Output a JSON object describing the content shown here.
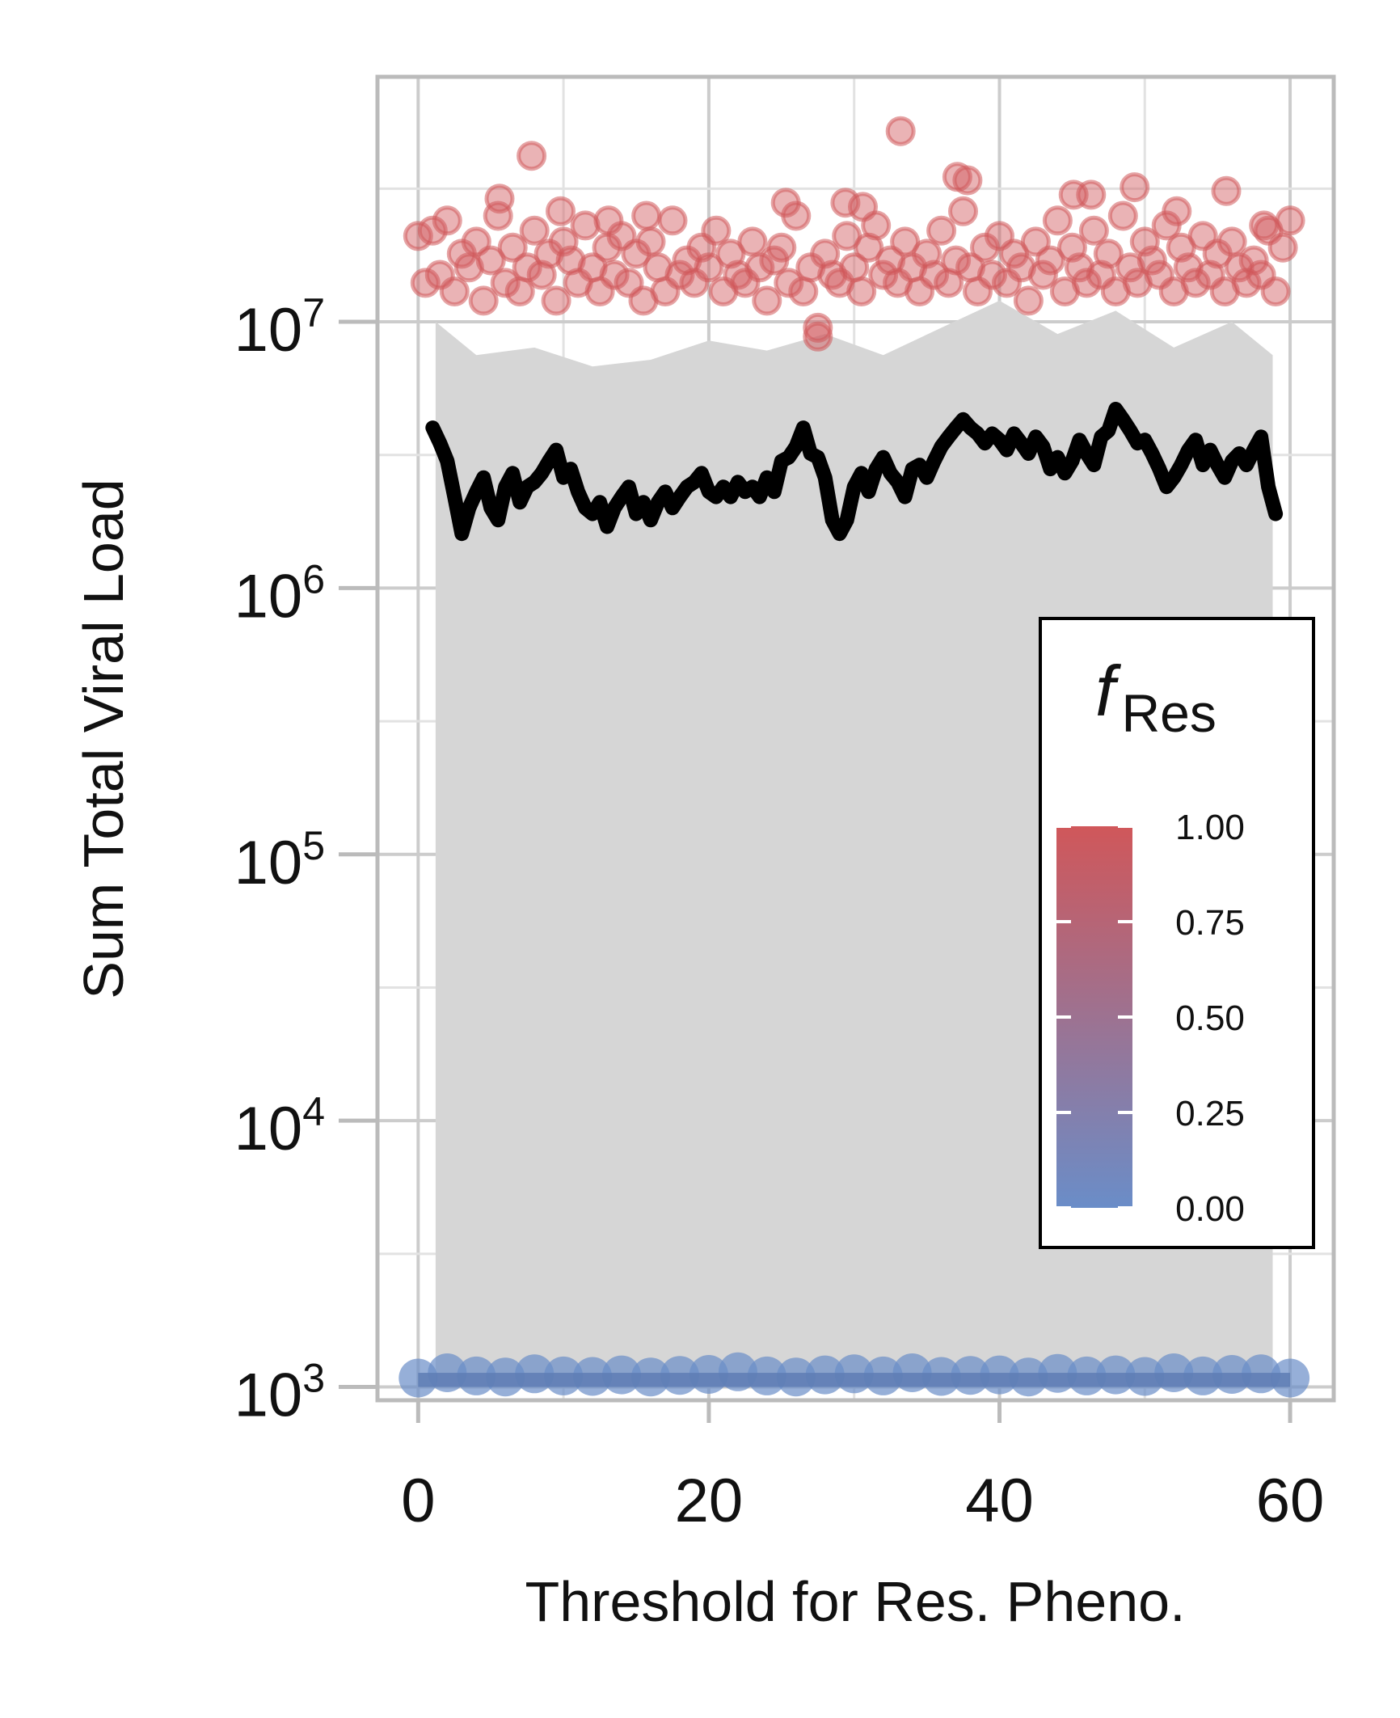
{
  "chart_data": {
    "type": "scatter",
    "xlabel": "Threshold for Res. Pheno.",
    "ylabel": "Sum Total Viral Load",
    "x_ticks": [
      "0",
      "20",
      "40",
      "60"
    ],
    "y_ticks": [
      {
        "base": "10",
        "exp": "3"
      },
      {
        "base": "10",
        "exp": "4"
      },
      {
        "base": "10",
        "exp": "5"
      },
      {
        "base": "10",
        "exp": "6"
      },
      {
        "base": "10",
        "exp": "7"
      }
    ],
    "xlim": [
      -2.8,
      63
    ],
    "ylim_log10": [
      2.95,
      7.92
    ],
    "y_scale": "log",
    "grid": true,
    "colors": {
      "res_high": "#d0575a",
      "res_low": "#6a8dc8",
      "band": "#d6d6d6",
      "median_line": "#000000",
      "grid": "#cccccc",
      "frame": "#bbbbbb"
    },
    "legend": {
      "title_main": "f",
      "title_sub": "Res",
      "placement": "right",
      "ticks": [
        "1.00",
        "0.75",
        "0.50",
        "0.25",
        "0.00"
      ]
    },
    "series": [
      {
        "f_res": 1.0,
        "x": [
          0.0,
          0.5,
          1.0,
          1.5,
          2.0,
          2.5,
          3.0,
          3.5,
          4.0,
          4.5,
          5.0,
          5.5,
          6.0,
          6.5,
          7.0,
          7.5,
          8.0,
          8.5,
          9.0,
          9.5,
          10.0,
          10.5,
          11.0,
          11.5,
          12.0,
          12.5,
          13.0,
          13.5,
          14.0,
          14.5,
          15.0,
          15.5,
          16.0,
          16.5,
          17.0,
          17.5,
          18.0,
          18.5,
          19.0,
          19.5,
          20.0,
          20.5,
          21.0,
          21.5,
          22.0,
          22.5,
          23.0,
          23.5,
          24.0,
          24.5,
          25.0,
          25.5,
          26.0,
          26.5,
          27.0,
          27.5,
          28.0,
          28.5,
          29.0,
          29.5,
          30.0,
          30.5,
          31.0,
          31.5,
          32.0,
          32.5,
          33.0,
          33.5,
          34.0,
          34.5,
          35.0,
          35.5,
          36.0,
          36.5,
          37.0,
          37.5,
          38.0,
          38.5,
          39.0,
          39.5,
          40.0,
          40.5,
          41.0,
          41.5,
          42.0,
          42.5,
          43.0,
          43.5,
          44.0,
          44.5,
          45.0,
          45.5,
          46.0,
          46.5,
          47.0,
          47.5,
          48.0,
          48.5,
          49.0,
          49.5,
          50.0,
          50.5,
          51.0,
          51.5,
          52.0,
          52.5,
          53.0,
          53.5,
          54.0,
          54.5,
          55.0,
          55.5,
          56.0,
          56.5,
          57.0,
          57.5,
          58.0,
          58.5,
          59.0,
          59.5,
          60.0,
          7.8,
          27.5,
          33.2,
          37.1,
          30.6,
          46.3,
          25.3,
          55.6,
          9.8,
          5.6,
          49.3,
          58.2,
          15.7,
          37.8,
          45.1,
          29.4,
          52.2,
          13.1
        ],
        "y": [
          21000000.0,
          14000000.0,
          22000000.0,
          15000000.0,
          24000000.0,
          13000000.0,
          18000000.0,
          16000000.0,
          20000000.0,
          12000000.0,
          17000000.0,
          25000000.0,
          14000000.0,
          19000000.0,
          13000000.0,
          16000000.0,
          22000000.0,
          15000000.0,
          18000000.0,
          12000000.0,
          20000000.0,
          17000000.0,
          14000000.0,
          23000000.0,
          16000000.0,
          13000000.0,
          19000000.0,
          15000000.0,
          21000000.0,
          14000000.0,
          18000000.0,
          12000000.0,
          20000000.0,
          16000000.0,
          13000000.0,
          24000000.0,
          15000000.0,
          17000000.0,
          14000000.0,
          19000000.0,
          16000000.0,
          22000000.0,
          13000000.0,
          18000000.0,
          15000000.0,
          14000000.0,
          20000000.0,
          16000000.0,
          12000000.0,
          17000000.0,
          19000000.0,
          14000000.0,
          25000000.0,
          13000000.0,
          16000000.0,
          9500000.0,
          18000000.0,
          15000000.0,
          14000000.0,
          21000000.0,
          16000000.0,
          13000000.0,
          19000000.0,
          23000000.0,
          15000000.0,
          17000000.0,
          14000000.0,
          20000000.0,
          16000000.0,
          13000000.0,
          18000000.0,
          15000000.0,
          22000000.0,
          14000000.0,
          17000000.0,
          26000000.0,
          16000000.0,
          13000000.0,
          19000000.0,
          15000000.0,
          21000000.0,
          14000000.0,
          18000000.0,
          16000000.0,
          12000000.0,
          20000000.0,
          15000000.0,
          17000000.0,
          24000000.0,
          13000000.0,
          19000000.0,
          16000000.0,
          14000000.0,
          22000000.0,
          15000000.0,
          18000000.0,
          13000000.0,
          25000000.0,
          16000000.0,
          14000000.0,
          20000000.0,
          17000000.0,
          15000000.0,
          23000000.0,
          13000000.0,
          19000000.0,
          16000000.0,
          14000000.0,
          21000000.0,
          15000000.0,
          18000000.0,
          13000000.0,
          20000000.0,
          16000000.0,
          14000000.0,
          17000000.0,
          15000000.0,
          22000000.0,
          13000000.0,
          19000000.0,
          24000000.0,
          42000000.0,
          8800000.0,
          52000000.0,
          35000000.0,
          27000000.0,
          30000000.0,
          28000000.0,
          31000000.0,
          26000000.0,
          29000000.0,
          32000000.0,
          23000000.0,
          25000000.0,
          34000000.0,
          30000000.0,
          28000000.0,
          26000000.0,
          24000000.0
        ]
      },
      {
        "f_res": 0.0,
        "x": [
          0,
          2,
          4,
          6,
          8,
          10,
          12,
          14,
          16,
          18,
          20,
          22,
          24,
          26,
          28,
          30,
          32,
          34,
          36,
          38,
          40,
          42,
          44,
          46,
          48,
          50,
          52,
          54,
          56,
          58,
          60
        ],
        "y": [
          1080,
          1130,
          1100,
          1090,
          1120,
          1100,
          1095,
          1110,
          1090,
          1105,
          1115,
          1140,
          1100,
          1090,
          1110,
          1120,
          1100,
          1130,
          1095,
          1105,
          1110,
          1090,
          1125,
          1100,
          1110,
          1095,
          1130,
          1100,
          1115,
          1120,
          1080
        ]
      }
    ],
    "band": {
      "x": [
        1.2,
        4,
        8,
        12,
        16,
        20,
        24,
        28,
        32,
        36,
        40,
        44,
        48,
        52,
        56,
        58.8
      ],
      "lower": [
        1000,
        1000,
        1000,
        1000,
        1000,
        1000,
        1000,
        1000,
        1000,
        1000,
        1000,
        1000,
        1000,
        1000,
        1000,
        1000
      ],
      "upper": [
        10000000.0,
        7500000.0,
        8000000.0,
        6800000.0,
        7200000.0,
        8500000.0,
        7800000.0,
        9000000.0,
        7500000.0,
        9500000.0,
        12000000.0,
        9000000.0,
        11000000.0,
        8000000.0,
        10000000.0,
        7500000.0
      ]
    },
    "median_line": {
      "x": [
        1.0,
        1.5,
        2.0,
        2.5,
        3.0,
        3.5,
        4.0,
        4.5,
        5.0,
        5.5,
        6.0,
        6.5,
        7.0,
        7.5,
        8.0,
        8.5,
        9.0,
        9.5,
        10.0,
        10.5,
        11.0,
        11.5,
        12.0,
        12.5,
        13.0,
        13.5,
        14.0,
        14.5,
        15.0,
        15.5,
        16.0,
        16.5,
        17.0,
        17.5,
        18.0,
        18.5,
        19.0,
        19.5,
        20.0,
        20.5,
        21.0,
        21.5,
        22.0,
        22.5,
        23.0,
        23.5,
        24.0,
        24.5,
        25.0,
        25.5,
        26.0,
        26.5,
        27.0,
        27.5,
        28.0,
        28.5,
        29.0,
        29.5,
        30.0,
        30.5,
        31.0,
        31.5,
        32.0,
        32.5,
        33.0,
        33.5,
        34.0,
        34.5,
        35.0,
        35.5,
        36.0,
        36.5,
        37.0,
        37.5,
        38.0,
        38.5,
        39.0,
        39.5,
        40.0,
        40.5,
        41.0,
        41.5,
        42.0,
        42.5,
        43.0,
        43.5,
        44.0,
        44.5,
        45.0,
        45.5,
        46.0,
        46.5,
        47.0,
        47.5,
        48.0,
        48.5,
        49.0,
        49.5,
        50.0,
        50.5,
        51.0,
        51.5,
        52.0,
        52.5,
        53.0,
        53.5,
        54.0,
        54.5,
        55.0,
        55.5,
        56.0,
        56.5,
        57.0,
        57.5,
        58.0,
        58.5,
        59.0
      ],
      "y": [
        4000000.0,
        3500000.0,
        3000000.0,
        2200000.0,
        1600000.0,
        2000000.0,
        2300000.0,
        2600000.0,
        2000000.0,
        1800000.0,
        2400000.0,
        2700000.0,
        2100000.0,
        2400000.0,
        2500000.0,
        2700000.0,
        3000000.0,
        3300000.0,
        2600000.0,
        2800000.0,
        2300000.0,
        2000000.0,
        1900000.0,
        2100000.0,
        1700000.0,
        2000000.0,
        2200000.0,
        2400000.0,
        1900000.0,
        2100000.0,
        1800000.0,
        2100000.0,
        2300000.0,
        2000000.0,
        2200000.0,
        2400000.0,
        2500000.0,
        2700000.0,
        2300000.0,
        2200000.0,
        2400000.0,
        2200000.0,
        2500000.0,
        2300000.0,
        2400000.0,
        2200000.0,
        2600000.0,
        2300000.0,
        3000000.0,
        3100000.0,
        3400000.0,
        4000000.0,
        3200000.0,
        3100000.0,
        2600000.0,
        1800000.0,
        1600000.0,
        1800000.0,
        2400000.0,
        2700000.0,
        2300000.0,
        2800000.0,
        3100000.0,
        2700000.0,
        2500000.0,
        2200000.0,
        2800000.0,
        2900000.0,
        2600000.0,
        3000000.0,
        3400000.0,
        3700000.0,
        4000000.0,
        4300000.0,
        4000000.0,
        3800000.0,
        3500000.0,
        3800000.0,
        3600000.0,
        3300000.0,
        3800000.0,
        3500000.0,
        3200000.0,
        3700000.0,
        3400000.0,
        2800000.0,
        3100000.0,
        2700000.0,
        3000000.0,
        3600000.0,
        3200000.0,
        2900000.0,
        3700000.0,
        3900000.0,
        4700000.0,
        4300000.0,
        3900000.0,
        3500000.0,
        3600000.0,
        3200000.0,
        2800000.0,
        2400000.0,
        2600000.0,
        2900000.0,
        3300000.0,
        3600000.0,
        2900000.0,
        3300000.0,
        2900000.0,
        2600000.0,
        3000000.0,
        3200000.0,
        2900000.0,
        3300000.0,
        3700000.0,
        2400000.0,
        1900000.0
      ]
    }
  }
}
